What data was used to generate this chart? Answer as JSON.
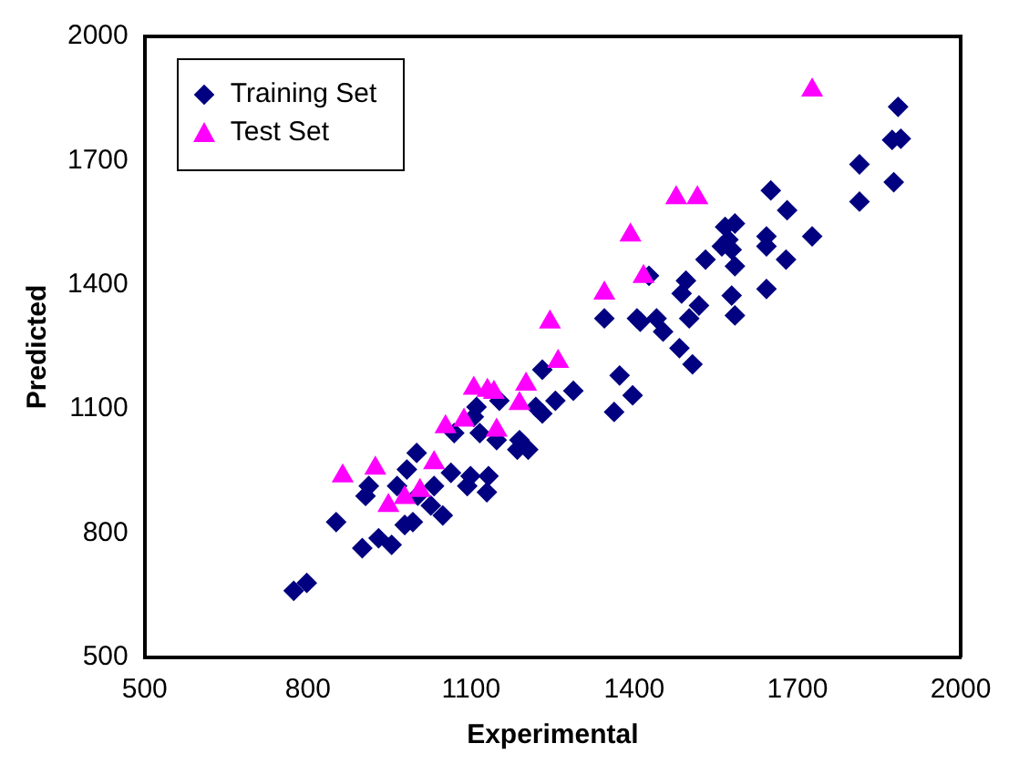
{
  "chart_data": {
    "type": "scatter",
    "xlabel": "Experimental",
    "ylabel": "Predicted",
    "xlim": [
      500,
      2000
    ],
    "ylim": [
      500,
      2000
    ],
    "xticks": [
      500,
      800,
      1100,
      1400,
      1700,
      2000
    ],
    "yticks": [
      500,
      800,
      1100,
      1400,
      1700,
      2000
    ],
    "grid": false,
    "legend": "top left",
    "series": [
      {
        "name": "Training Set",
        "color": "#000080",
        "marker": "diamond",
        "x": [
          1885,
          1874,
          1890,
          1877,
          1814,
          1814,
          1727,
          1651,
          1681,
          1679,
          1643,
          1643,
          1643,
          1585,
          1567,
          1573,
          1561,
          1579,
          1585,
          1579,
          1585,
          1531,
          1519,
          1501,
          1495,
          1487,
          1483,
          1507,
          1441,
          1453,
          1427,
          1405,
          1411,
          1345,
          1373,
          1397,
          1363,
          1288,
          1255,
          1231,
          1219,
          1231,
          1205,
          1189,
          1185,
          1147,
          1152,
          1110,
          1116,
          1105,
          1132,
          1129,
          1099,
          1093,
          1063,
          1069,
          1032,
          1048,
          1026,
          1000,
          982,
          964,
          912,
          906,
          852,
          900,
          930,
          954,
          978,
          993,
          1002,
          774,
          798
        ],
        "values": [
          1830,
          1750,
          1753,
          1648,
          1691,
          1601,
          1517,
          1628,
          1580,
          1461,
          1517,
          1493,
          1390,
          1548,
          1540,
          1509,
          1493,
          1485,
          1445,
          1374,
          1326,
          1461,
          1350,
          1319,
          1410,
          1379,
          1247,
          1208,
          1319,
          1287,
          1422,
          1319,
          1311,
          1319,
          1181,
          1133,
          1093,
          1144,
          1120,
          1089,
          1105,
          1195,
          1002,
          1025,
          1002,
          1025,
          1120,
          1105,
          1042,
          1081,
          938,
          899,
          938,
          914,
          946,
          1042,
          914,
          843,
          867,
          994,
          954,
          914,
          914,
          890,
          827,
          764,
          788,
          772,
          820,
          827,
          891,
          661,
          680
        ]
      },
      {
        "name": "Test Set",
        "color": "#ff00ff",
        "marker": "triangle",
        "x": [
          1727,
          1477,
          1516,
          1393,
          1417,
          1345,
          1245,
          1260,
          1105,
          1130,
          1142,
          1201,
          1189,
          1147,
          1053,
          1087,
          1032,
          864,
          924,
          948,
          978,
          1006
        ],
        "values": [
          1870,
          1610,
          1610,
          1520,
          1420,
          1380,
          1310,
          1215,
          1150,
          1145,
          1140,
          1160,
          1113,
          1049,
          1057,
          1073,
          970,
          938,
          957,
          867,
          886,
          903
        ]
      }
    ]
  }
}
